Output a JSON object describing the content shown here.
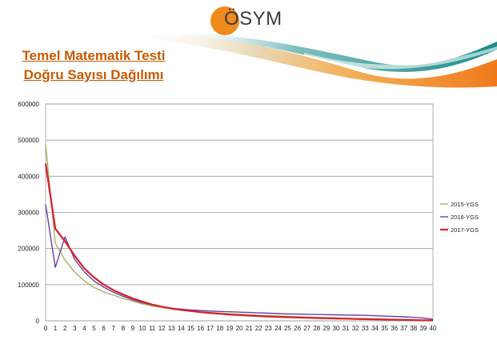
{
  "header": {
    "logo_text": "ÖSYM",
    "title_line1": "Temel Matematik Testi",
    "title_line2": "Doğru Sayısı Dağılımı"
  },
  "chart_data": {
    "type": "line",
    "x": [
      0,
      1,
      2,
      3,
      4,
      5,
      6,
      7,
      8,
      9,
      10,
      11,
      12,
      13,
      14,
      15,
      16,
      17,
      18,
      19,
      20,
      21,
      22,
      23,
      24,
      25,
      26,
      27,
      28,
      29,
      30,
      31,
      32,
      33,
      34,
      35,
      36,
      37,
      38,
      39,
      40
    ],
    "ylim": [
      0,
      600000
    ],
    "yticks": [
      0,
      100000,
      200000,
      300000,
      400000,
      500000,
      600000
    ],
    "grid": true,
    "legend_position": "right",
    "series": [
      {
        "name": "2015-YGS",
        "color": "#a9b25f",
        "values": [
          488000,
          215000,
          168000,
          135000,
          110000,
          92000,
          80000,
          71000,
          62000,
          54000,
          47000,
          41000,
          37000,
          33000,
          30000,
          27000,
          25000,
          23000,
          21000,
          19500,
          18000,
          16500,
          15000,
          14000,
          13000,
          12000,
          11000,
          10000,
          9200,
          8500,
          7800,
          7000,
          6200,
          5500,
          4800,
          4200,
          3600,
          3000,
          2400,
          1800,
          1200
        ]
      },
      {
        "name": "2016-YGS",
        "color": "#6b3fa0",
        "values": [
          322000,
          148000,
          232000,
          170000,
          135000,
          110000,
          93000,
          79000,
          68000,
          58000,
          50000,
          44000,
          39000,
          35000,
          32000,
          30000,
          28500,
          27000,
          26000,
          25000,
          24000,
          23000,
          22000,
          21000,
          20000,
          19000,
          18500,
          18000,
          17500,
          17000,
          16500,
          16000,
          15500,
          15000,
          14000,
          13000,
          12000,
          11000,
          9500,
          7500,
          4000
        ]
      },
      {
        "name": "2017-YGS",
        "color": "#d4202a",
        "values": [
          435000,
          255000,
          220000,
          180000,
          145000,
          120000,
          100000,
          85000,
          73000,
          62000,
          53000,
          45000,
          39000,
          34000,
          30000,
          27000,
          24000,
          21500,
          19500,
          17500,
          16000,
          14500,
          13200,
          12000,
          11000,
          10000,
          9200,
          8500,
          7800,
          7100,
          6500,
          5900,
          5300,
          4700,
          4100,
          3600,
          3100,
          2600,
          2100,
          1500,
          800
        ]
      }
    ]
  }
}
